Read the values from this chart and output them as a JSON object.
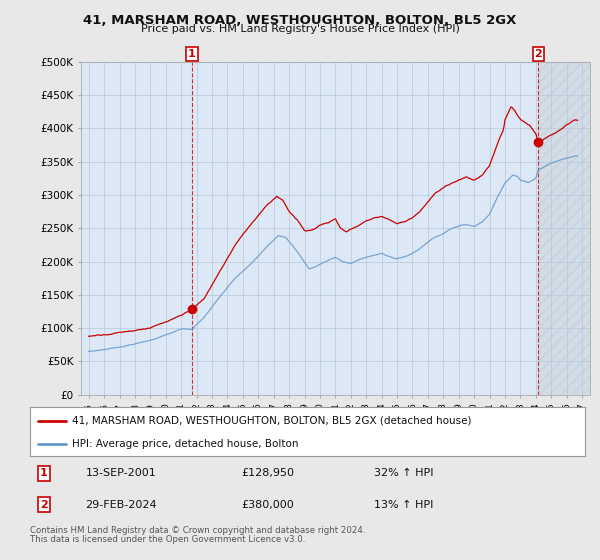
{
  "title": "41, MARSHAM ROAD, WESTHOUGHTON, BOLTON, BL5 2GX",
  "subtitle": "Price paid vs. HM Land Registry's House Price Index (HPI)",
  "red_label": "41, MARSHAM ROAD, WESTHOUGHTON, BOLTON, BL5 2GX (detached house)",
  "blue_label": "HPI: Average price, detached house, Bolton",
  "transaction1": {
    "date": "13-SEP-2001",
    "price": 128950,
    "pct": "32%",
    "label": "1",
    "year": 2001.7
  },
  "transaction2": {
    "date": "29-FEB-2024",
    "price": 380000,
    "pct": "13%",
    "label": "2",
    "year": 2024.17
  },
  "footnote1": "Contains HM Land Registry data © Crown copyright and database right 2024.",
  "footnote2": "This data is licensed under the Open Government Licence v3.0.",
  "legend_row1_date": "13-SEP-2001",
  "legend_row1_price": "£128,950",
  "legend_row1_pct": "32% ↑ HPI",
  "legend_row2_date": "29-FEB-2024",
  "legend_row2_price": "£380,000",
  "legend_row2_pct": "13% ↑ HPI",
  "ylim": [
    0,
    500000
  ],
  "xlim_start": 1994.5,
  "xlim_end": 2027.5,
  "background_color": "#e8e8e8",
  "plot_bg_color": "#dce8f5",
  "grid_color": "#b8c8d8",
  "red_color": "#cc0000",
  "blue_color": "#6699cc"
}
